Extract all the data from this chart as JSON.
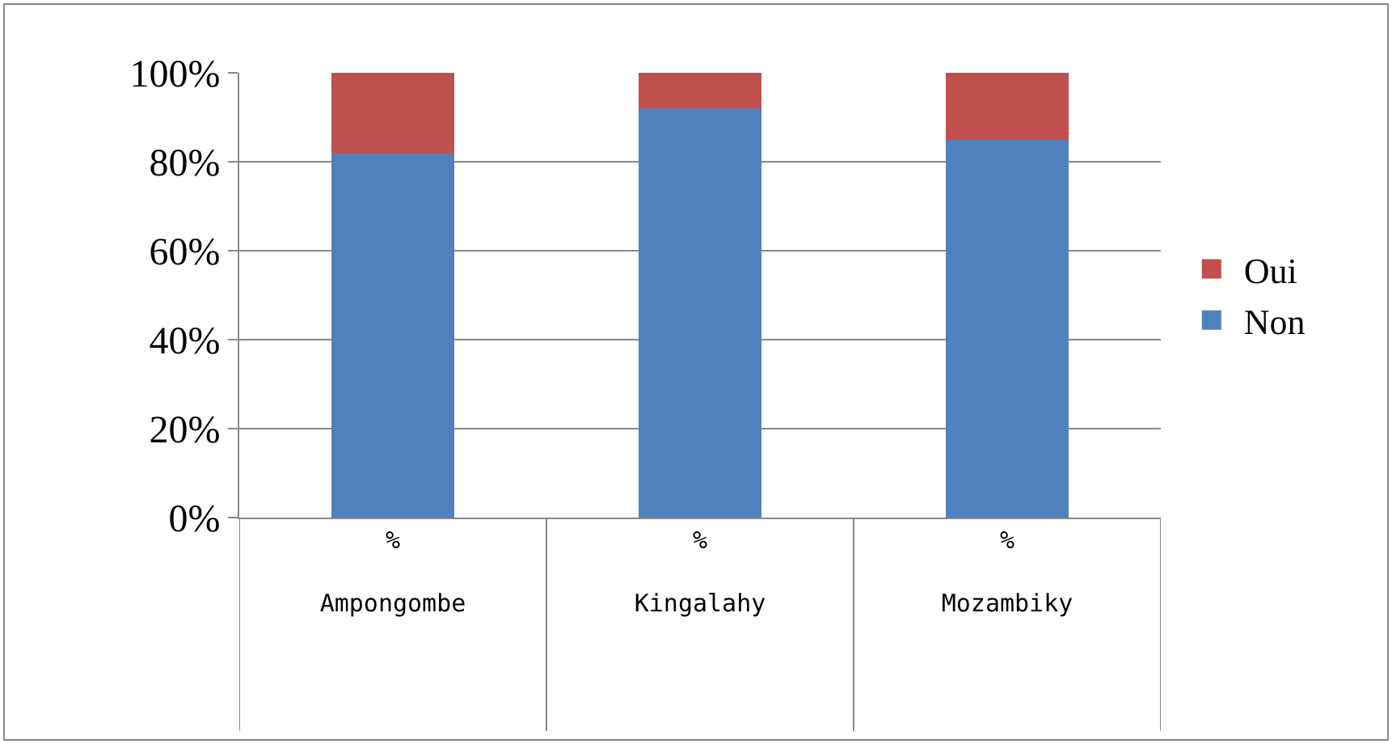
{
  "chart_data": {
    "type": "bar",
    "stacked": true,
    "categories": [
      "%\n\nAmpongombe",
      "%\n\nKingalahy",
      "%\n\nMozambiky"
    ],
    "series": [
      {
        "name": "Non",
        "color": "#4f81bd",
        "values": [
          82,
          92,
          85
        ]
      },
      {
        "name": "Oui",
        "color": "#c0504d",
        "values": [
          18,
          8,
          15
        ]
      }
    ],
    "ylim": [
      0,
      100
    ],
    "yticks": [
      {
        "value": 0,
        "label": "0%"
      },
      {
        "value": 20,
        "label": "20%"
      },
      {
        "value": 40,
        "label": "40%"
      },
      {
        "value": 60,
        "label": "60%"
      },
      {
        "value": 80,
        "label": "80%"
      },
      {
        "value": 100,
        "label": "100%"
      }
    ],
    "grid": "y",
    "legend": "right"
  }
}
